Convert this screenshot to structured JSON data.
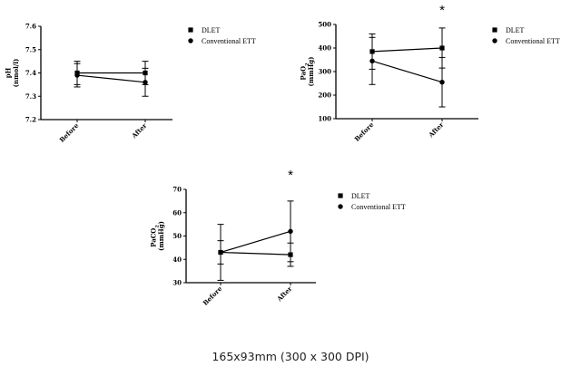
{
  "caption": "165x93mm (300 x 300 DPI)",
  "chart_data": [
    {
      "type": "line",
      "ylabel": "pH (nmol/l)",
      "categories": [
        "Before",
        "After"
      ],
      "ylim": [
        7.2,
        7.6
      ],
      "yticks": [
        "7.2",
        "7.3",
        "7.4",
        "7.5",
        "7.6"
      ],
      "significance": "",
      "series": [
        {
          "name": "DLET",
          "marker": "square",
          "values": [
            7.4,
            7.4
          ],
          "err": [
            0.05,
            0.05
          ]
        },
        {
          "name": "Conventional ETT",
          "marker": "circle",
          "values": [
            7.39,
            7.36
          ],
          "err": [
            0.05,
            0.06
          ]
        }
      ]
    },
    {
      "type": "line",
      "ylabel": "PaO2 (mmHg)",
      "categories": [
        "Before",
        "After"
      ],
      "ylim": [
        100,
        500
      ],
      "yticks": [
        "100",
        "200",
        "300",
        "400",
        "500"
      ],
      "significance": "*",
      "series": [
        {
          "name": "DLET",
          "marker": "square",
          "values": [
            385,
            400
          ],
          "err": [
            75,
            85
          ]
        },
        {
          "name": "Conventional ETT",
          "marker": "circle",
          "values": [
            345,
            255
          ],
          "err": [
            100,
            105
          ]
        }
      ]
    },
    {
      "type": "line",
      "ylabel": "PaCO2 (mmHg)",
      "categories": [
        "Before",
        "After"
      ],
      "ylim": [
        30,
        70
      ],
      "yticks": [
        "30",
        "40",
        "50",
        "60",
        "70"
      ],
      "significance": "*",
      "series": [
        {
          "name": "DLET",
          "marker": "square",
          "values": [
            43,
            42
          ],
          "err": [
            5,
            5
          ]
        },
        {
          "name": "Conventional ETT",
          "marker": "circle",
          "values": [
            43,
            52
          ],
          "err": [
            12,
            13
          ]
        }
      ]
    }
  ]
}
